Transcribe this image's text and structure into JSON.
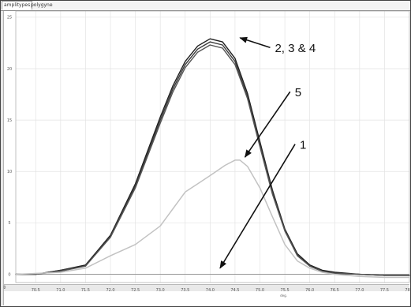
{
  "tabs": [
    "amplitypes",
    "polygyne"
  ],
  "chart_data": {
    "type": "line",
    "xlabel": "deg.",
    "ylabel": "",
    "xlim": [
      70.1,
      78.0
    ],
    "ylim": [
      -0.8,
      25.6
    ],
    "x_ticks": [
      70.5,
      71.0,
      71.5,
      72.0,
      72.5,
      73.0,
      73.5,
      74.0,
      74.5,
      75.0,
      75.5,
      76.0,
      76.5,
      77.0,
      77.5,
      78.0
    ],
    "x_tick_labels": [
      "70.5",
      "71.0",
      "71.5",
      "72.0",
      "72.5",
      "73.0",
      "73.5",
      "74.0",
      "74.5",
      "75.0",
      "75.5",
      "76.0",
      "76.5",
      "77.0",
      "77.5",
      "78.0"
    ],
    "y_ticks": [
      0,
      5,
      10,
      15,
      20,
      25
    ],
    "y_tick_labels": [
      "0",
      "5",
      "10",
      "15",
      "20",
      "25"
    ],
    "grid": true,
    "series": [
      {
        "color": "#1f1f1f",
        "x": [
          70.1,
          70.5,
          71.0,
          71.5,
          72.0,
          72.5,
          73.0,
          73.25,
          73.5,
          73.75,
          74.0,
          74.25,
          74.5,
          74.75,
          75.0,
          75.25,
          75.5,
          75.75,
          76.0,
          76.25,
          76.5,
          77.0,
          77.5,
          78.0
        ],
        "y": [
          0.0,
          0.0,
          0.4,
          0.9,
          3.8,
          8.8,
          15.3,
          18.3,
          20.7,
          22.2,
          22.9,
          22.6,
          21.0,
          17.6,
          12.9,
          8.2,
          4.4,
          2.0,
          0.9,
          0.4,
          0.2,
          0.0,
          -0.1,
          -0.1
        ]
      },
      {
        "color": "#3a3a3a",
        "x": [
          70.1,
          70.5,
          71.0,
          71.5,
          72.0,
          72.5,
          73.0,
          73.25,
          73.5,
          73.75,
          74.0,
          74.25,
          74.5,
          74.75,
          75.0,
          75.25,
          75.5,
          75.75,
          76.0,
          76.25,
          76.5,
          77.0,
          77.5,
          78.0
        ],
        "y": [
          0.0,
          0.0,
          0.4,
          0.8,
          3.7,
          8.6,
          15.0,
          18.0,
          20.4,
          21.9,
          22.6,
          22.3,
          20.7,
          17.3,
          12.6,
          8.0,
          4.3,
          1.9,
          0.8,
          0.3,
          0.1,
          0.0,
          -0.1,
          -0.1
        ]
      },
      {
        "color": "#555555",
        "x": [
          70.1,
          70.5,
          71.0,
          71.5,
          72.0,
          72.5,
          73.0,
          73.25,
          73.5,
          73.75,
          74.0,
          74.25,
          74.5,
          74.75,
          75.0,
          75.25,
          75.5,
          75.75,
          76.0,
          76.25,
          76.5,
          77.0,
          77.5,
          78.0
        ],
        "y": [
          0.0,
          0.0,
          0.3,
          0.8,
          3.6,
          8.4,
          14.7,
          17.7,
          20.1,
          21.6,
          22.3,
          22.0,
          20.4,
          17.1,
          12.4,
          7.8,
          4.2,
          1.8,
          0.8,
          0.3,
          0.1,
          0.0,
          -0.1,
          -0.1
        ]
      },
      {
        "color": "#c2c2c2",
        "x": [
          70.1,
          71.0,
          71.5,
          72.0,
          72.5,
          73.0,
          73.5,
          74.0,
          74.3,
          74.5,
          74.6,
          74.75,
          75.0,
          75.25,
          75.5,
          75.75,
          76.0,
          76.25,
          76.5,
          77.0,
          77.5,
          78.0
        ],
        "y": [
          0.0,
          0.2,
          0.6,
          1.8,
          2.9,
          4.7,
          8.0,
          9.6,
          10.6,
          11.1,
          11.1,
          10.5,
          8.4,
          5.6,
          2.9,
          1.3,
          0.6,
          0.2,
          0.0,
          -0.2,
          -0.3,
          -0.3
        ]
      }
    ],
    "annotations": [
      {
        "text": "2, 3 & 4",
        "text_at": [
          75.3,
          21.9
        ],
        "arrow_to": [
          74.6,
          23.0
        ]
      },
      {
        "text": "5",
        "text_at": [
          75.7,
          17.6
        ],
        "arrow_to": [
          74.7,
          11.4
        ]
      },
      {
        "text": "1",
        "text_at": [
          75.8,
          12.5
        ],
        "arrow_to": [
          74.2,
          0.6
        ]
      }
    ]
  }
}
